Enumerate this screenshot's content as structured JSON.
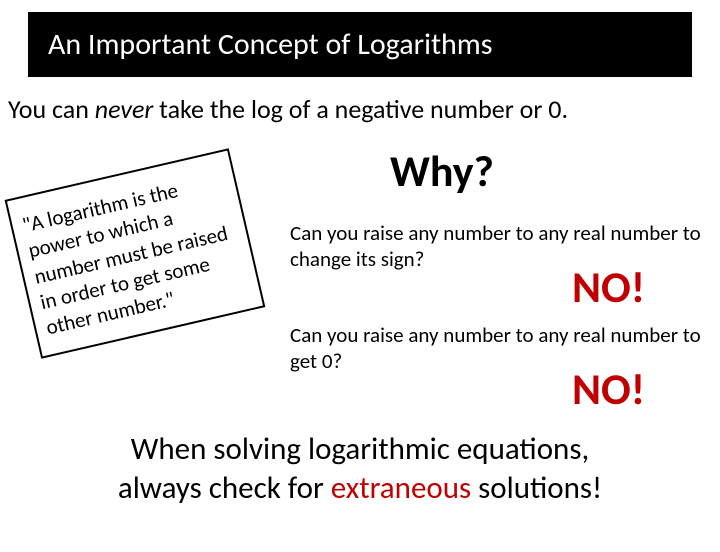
{
  "title": "An Important Concept of Logarithms",
  "subtitle": {
    "p1": "You can ",
    "never": "never",
    "p2": " take the log of a ",
    "neg": "negative",
    "p3": " number or 0."
  },
  "tilted": "\"A logarithm is the power to which a number must be raised in order to get some other number.\"",
  "why": "Why?",
  "q1": "Can you raise any number to any real number to change its sign?",
  "no": "NO!",
  "q2": "Can you raise any number to any real number to get 0?",
  "conclusion": {
    "l1": "When solving logarithmic equations,",
    "l2a": "always check for ",
    "extraneous": "extraneous",
    "l2b": " solutions!"
  },
  "colors": {
    "red": "#c00000",
    "black": "#000000",
    "white": "#ffffff"
  }
}
